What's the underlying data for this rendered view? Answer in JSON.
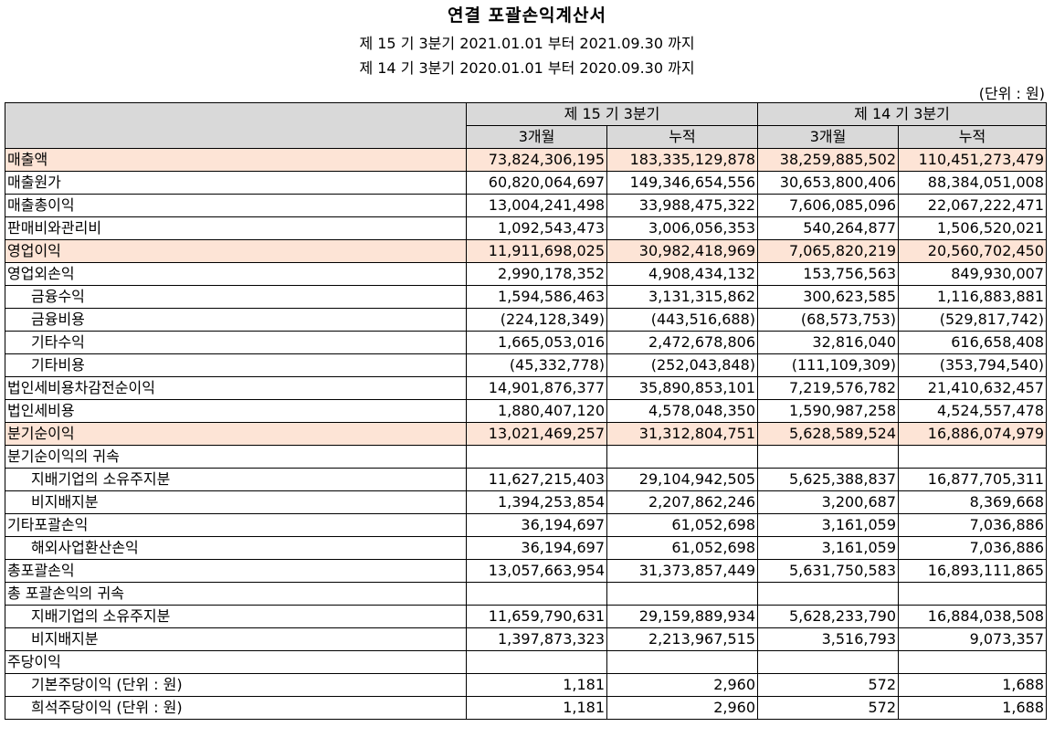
{
  "header": {
    "title": "연결 포괄손익계산서",
    "period_current": "제 15 기 3분기 2021.01.01 부터 2021.09.30 까지",
    "period_prior": "제 14 기 3분기 2020.01.01 부터 2020.09.30 까지",
    "unit": "(단위 : 원)"
  },
  "columns": {
    "group_current": "제 15 기 3분기",
    "group_prior": "제 14 기 3분기",
    "sub": [
      "3개월",
      "누적",
      "3개월",
      "누적"
    ]
  },
  "rows": [
    {
      "label": "매출액",
      "indent": false,
      "highlight": true,
      "values": [
        "73,824,306,195",
        "183,335,129,878",
        "38,259,885,502",
        "110,451,273,479"
      ]
    },
    {
      "label": "매출원가",
      "indent": false,
      "highlight": false,
      "values": [
        "60,820,064,697",
        "149,346,654,556",
        "30,653,800,406",
        "88,384,051,008"
      ]
    },
    {
      "label": "매출총이익",
      "indent": false,
      "highlight": false,
      "values": [
        "13,004,241,498",
        "33,988,475,322",
        "7,606,085,096",
        "22,067,222,471"
      ]
    },
    {
      "label": "판매비와관리비",
      "indent": false,
      "highlight": false,
      "values": [
        "1,092,543,473",
        "3,006,056,353",
        "540,264,877",
        "1,506,520,021"
      ]
    },
    {
      "label": "영업이익",
      "indent": false,
      "highlight": true,
      "values": [
        "11,911,698,025",
        "30,982,418,969",
        "7,065,820,219",
        "20,560,702,450"
      ]
    },
    {
      "label": "영업외손익",
      "indent": false,
      "highlight": false,
      "values": [
        "2,990,178,352",
        "4,908,434,132",
        "153,756,563",
        "849,930,007"
      ]
    },
    {
      "label": "금융수익",
      "indent": true,
      "highlight": false,
      "values": [
        "1,594,586,463",
        "3,131,315,862",
        "300,623,585",
        "1,116,883,881"
      ]
    },
    {
      "label": "금융비용",
      "indent": true,
      "highlight": false,
      "values": [
        "(224,128,349)",
        "(443,516,688)",
        "(68,573,753)",
        "(529,817,742)"
      ]
    },
    {
      "label": "기타수익",
      "indent": true,
      "highlight": false,
      "values": [
        "1,665,053,016",
        "2,472,678,806",
        "32,816,040",
        "616,658,408"
      ]
    },
    {
      "label": "기타비용",
      "indent": true,
      "highlight": false,
      "values": [
        "(45,332,778)",
        "(252,043,848)",
        "(111,109,309)",
        "(353,794,540)"
      ]
    },
    {
      "label": "법인세비용차감전순이익",
      "indent": false,
      "highlight": false,
      "values": [
        "14,901,876,377",
        "35,890,853,101",
        "7,219,576,782",
        "21,410,632,457"
      ]
    },
    {
      "label": "법인세비용",
      "indent": false,
      "highlight": false,
      "values": [
        "1,880,407,120",
        "4,578,048,350",
        "1,590,987,258",
        "4,524,557,478"
      ]
    },
    {
      "label": "분기순이익",
      "indent": false,
      "highlight": true,
      "values": [
        "13,021,469,257",
        "31,312,804,751",
        "5,628,589,524",
        "16,886,074,979"
      ]
    },
    {
      "label": "분기순이익의 귀속",
      "indent": false,
      "highlight": false,
      "values": [
        "",
        "",
        "",
        ""
      ]
    },
    {
      "label": "지배기업의 소유주지분",
      "indent": true,
      "highlight": false,
      "values": [
        "11,627,215,403",
        "29,104,942,505",
        "5,625,388,837",
        "16,877,705,311"
      ]
    },
    {
      "label": "비지배지분",
      "indent": true,
      "highlight": false,
      "values": [
        "1,394,253,854",
        "2,207,862,246",
        "3,200,687",
        "8,369,668"
      ]
    },
    {
      "label": "기타포괄손익",
      "indent": false,
      "highlight": false,
      "values": [
        "36,194,697",
        "61,052,698",
        "3,161,059",
        "7,036,886"
      ]
    },
    {
      "label": "해외사업환산손익",
      "indent": true,
      "highlight": false,
      "values": [
        "36,194,697",
        "61,052,698",
        "3,161,059",
        "7,036,886"
      ]
    },
    {
      "label": "총포괄손익",
      "indent": false,
      "highlight": false,
      "values": [
        "13,057,663,954",
        "31,373,857,449",
        "5,631,750,583",
        "16,893,111,865"
      ]
    },
    {
      "label": "총 포괄손익의 귀속",
      "indent": false,
      "highlight": false,
      "values": [
        "",
        "",
        "",
        ""
      ]
    },
    {
      "label": "지배기업의 소유주지분",
      "indent": true,
      "highlight": false,
      "values": [
        "11,659,790,631",
        "29,159,889,934",
        "5,628,233,790",
        "16,884,038,508"
      ]
    },
    {
      "label": "비지배지분",
      "indent": true,
      "highlight": false,
      "values": [
        "1,397,873,323",
        "2,213,967,515",
        "3,516,793",
        "9,073,357"
      ]
    },
    {
      "label": "주당이익",
      "indent": false,
      "highlight": false,
      "values": [
        "",
        "",
        "",
        ""
      ]
    },
    {
      "label": "기본주당이익 (단위 : 원)",
      "indent": true,
      "highlight": false,
      "values": [
        "1,181",
        "2,960",
        "572",
        "1,688"
      ]
    },
    {
      "label": "희석주당이익 (단위 : 원)",
      "indent": true,
      "highlight": false,
      "values": [
        "1,181",
        "2,960",
        "572",
        "1,688"
      ]
    }
  ],
  "colors": {
    "header_bg": "#d9d9d9",
    "highlight_bg": "#fde4d6",
    "border": "#000000"
  }
}
